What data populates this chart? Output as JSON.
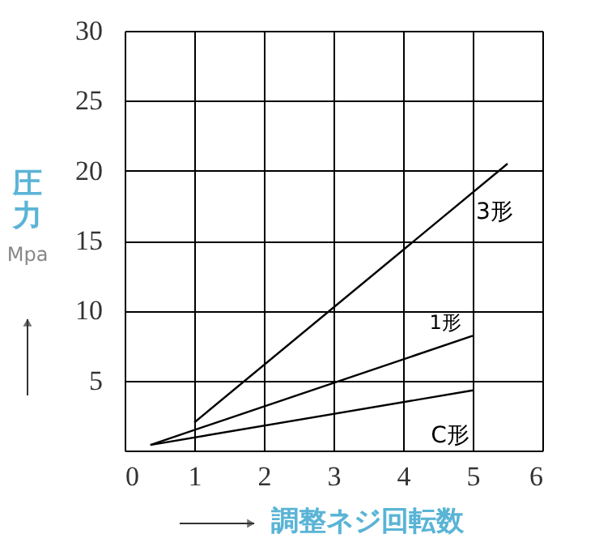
{
  "chart_data": {
    "type": "line",
    "xlabel": "調整ネジ回転数",
    "ylabel": "圧力\nMpa",
    "xlim": [
      0,
      6
    ],
    "xticks": [
      0,
      1,
      2,
      3,
      4,
      5,
      6
    ],
    "ylim": [
      0,
      30
    ],
    "yticks": [
      {
        "value": 0,
        "label": null
      },
      5,
      10,
      15,
      20,
      25,
      30
    ],
    "grid": true,
    "marker": "none",
    "line_style": "solid",
    "series": [
      {
        "name": "3形",
        "color": "#000000",
        "x": [
          1,
          5.5
        ],
        "values": [
          2.0,
          20.5
        ]
      },
      {
        "name": "1形",
        "color": "#000000",
        "x": [
          0.37,
          5
        ],
        "values": [
          0.4,
          8.2
        ]
      },
      {
        "name": "C形",
        "color": "#000000",
        "x": [
          0.37,
          5
        ],
        "values": [
          0.4,
          4.3
        ]
      }
    ]
  }
}
